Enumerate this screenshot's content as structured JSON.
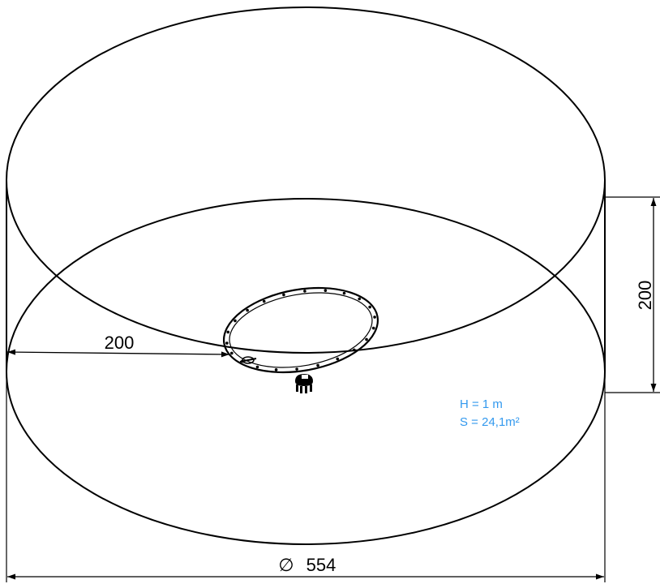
{
  "dimensions": {
    "diameter_symbol": "∅",
    "diameter_value": "554",
    "height_value": "200",
    "radius_value": "200"
  },
  "notes": {
    "height": "H = 1 m",
    "surface": "S = 24,1m²",
    "color": "#3399ee"
  }
}
